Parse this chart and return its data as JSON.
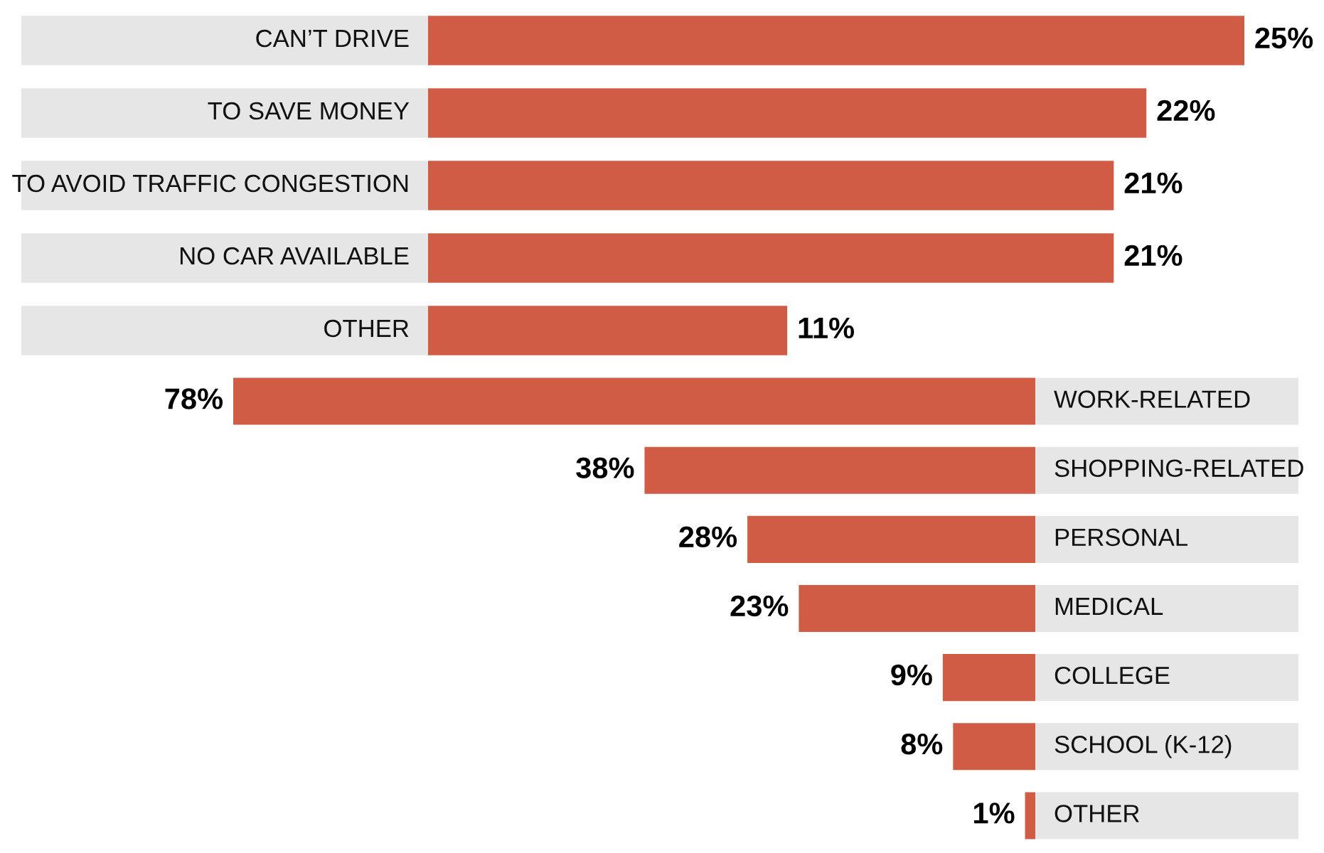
{
  "chart_data": [
    {
      "type": "bar",
      "orientation": "horizontal",
      "categories": [
        "CAN’T DRIVE",
        "TO SAVE MONEY",
        "TO AVOID TRAFFIC CONGESTION",
        "NO CAR AVAILABLE",
        "OTHER"
      ],
      "values": [
        25,
        22,
        21,
        21,
        11
      ],
      "color": "#d05c45",
      "xlim": [
        0,
        25
      ],
      "data_labels": true,
      "value_labels": [
        "25%",
        "22%",
        "21%",
        "21%",
        "11%"
      ]
    },
    {
      "type": "bar",
      "orientation": "horizontal",
      "categories": [
        "WORK-RELATED",
        "SHOPPING-RELATED",
        "PERSONAL",
        "MEDICAL",
        "COLLEGE",
        "SCHOOL (K-12)",
        "OTHER"
      ],
      "values": [
        78,
        38,
        28,
        23,
        9,
        8,
        1
      ],
      "color": "#d05c45",
      "xlim": [
        78,
        0
      ],
      "data_labels": true,
      "value_labels": [
        "78%",
        "38%",
        "28%",
        "23%",
        "9%",
        "8%",
        "1%"
      ]
    }
  ]
}
